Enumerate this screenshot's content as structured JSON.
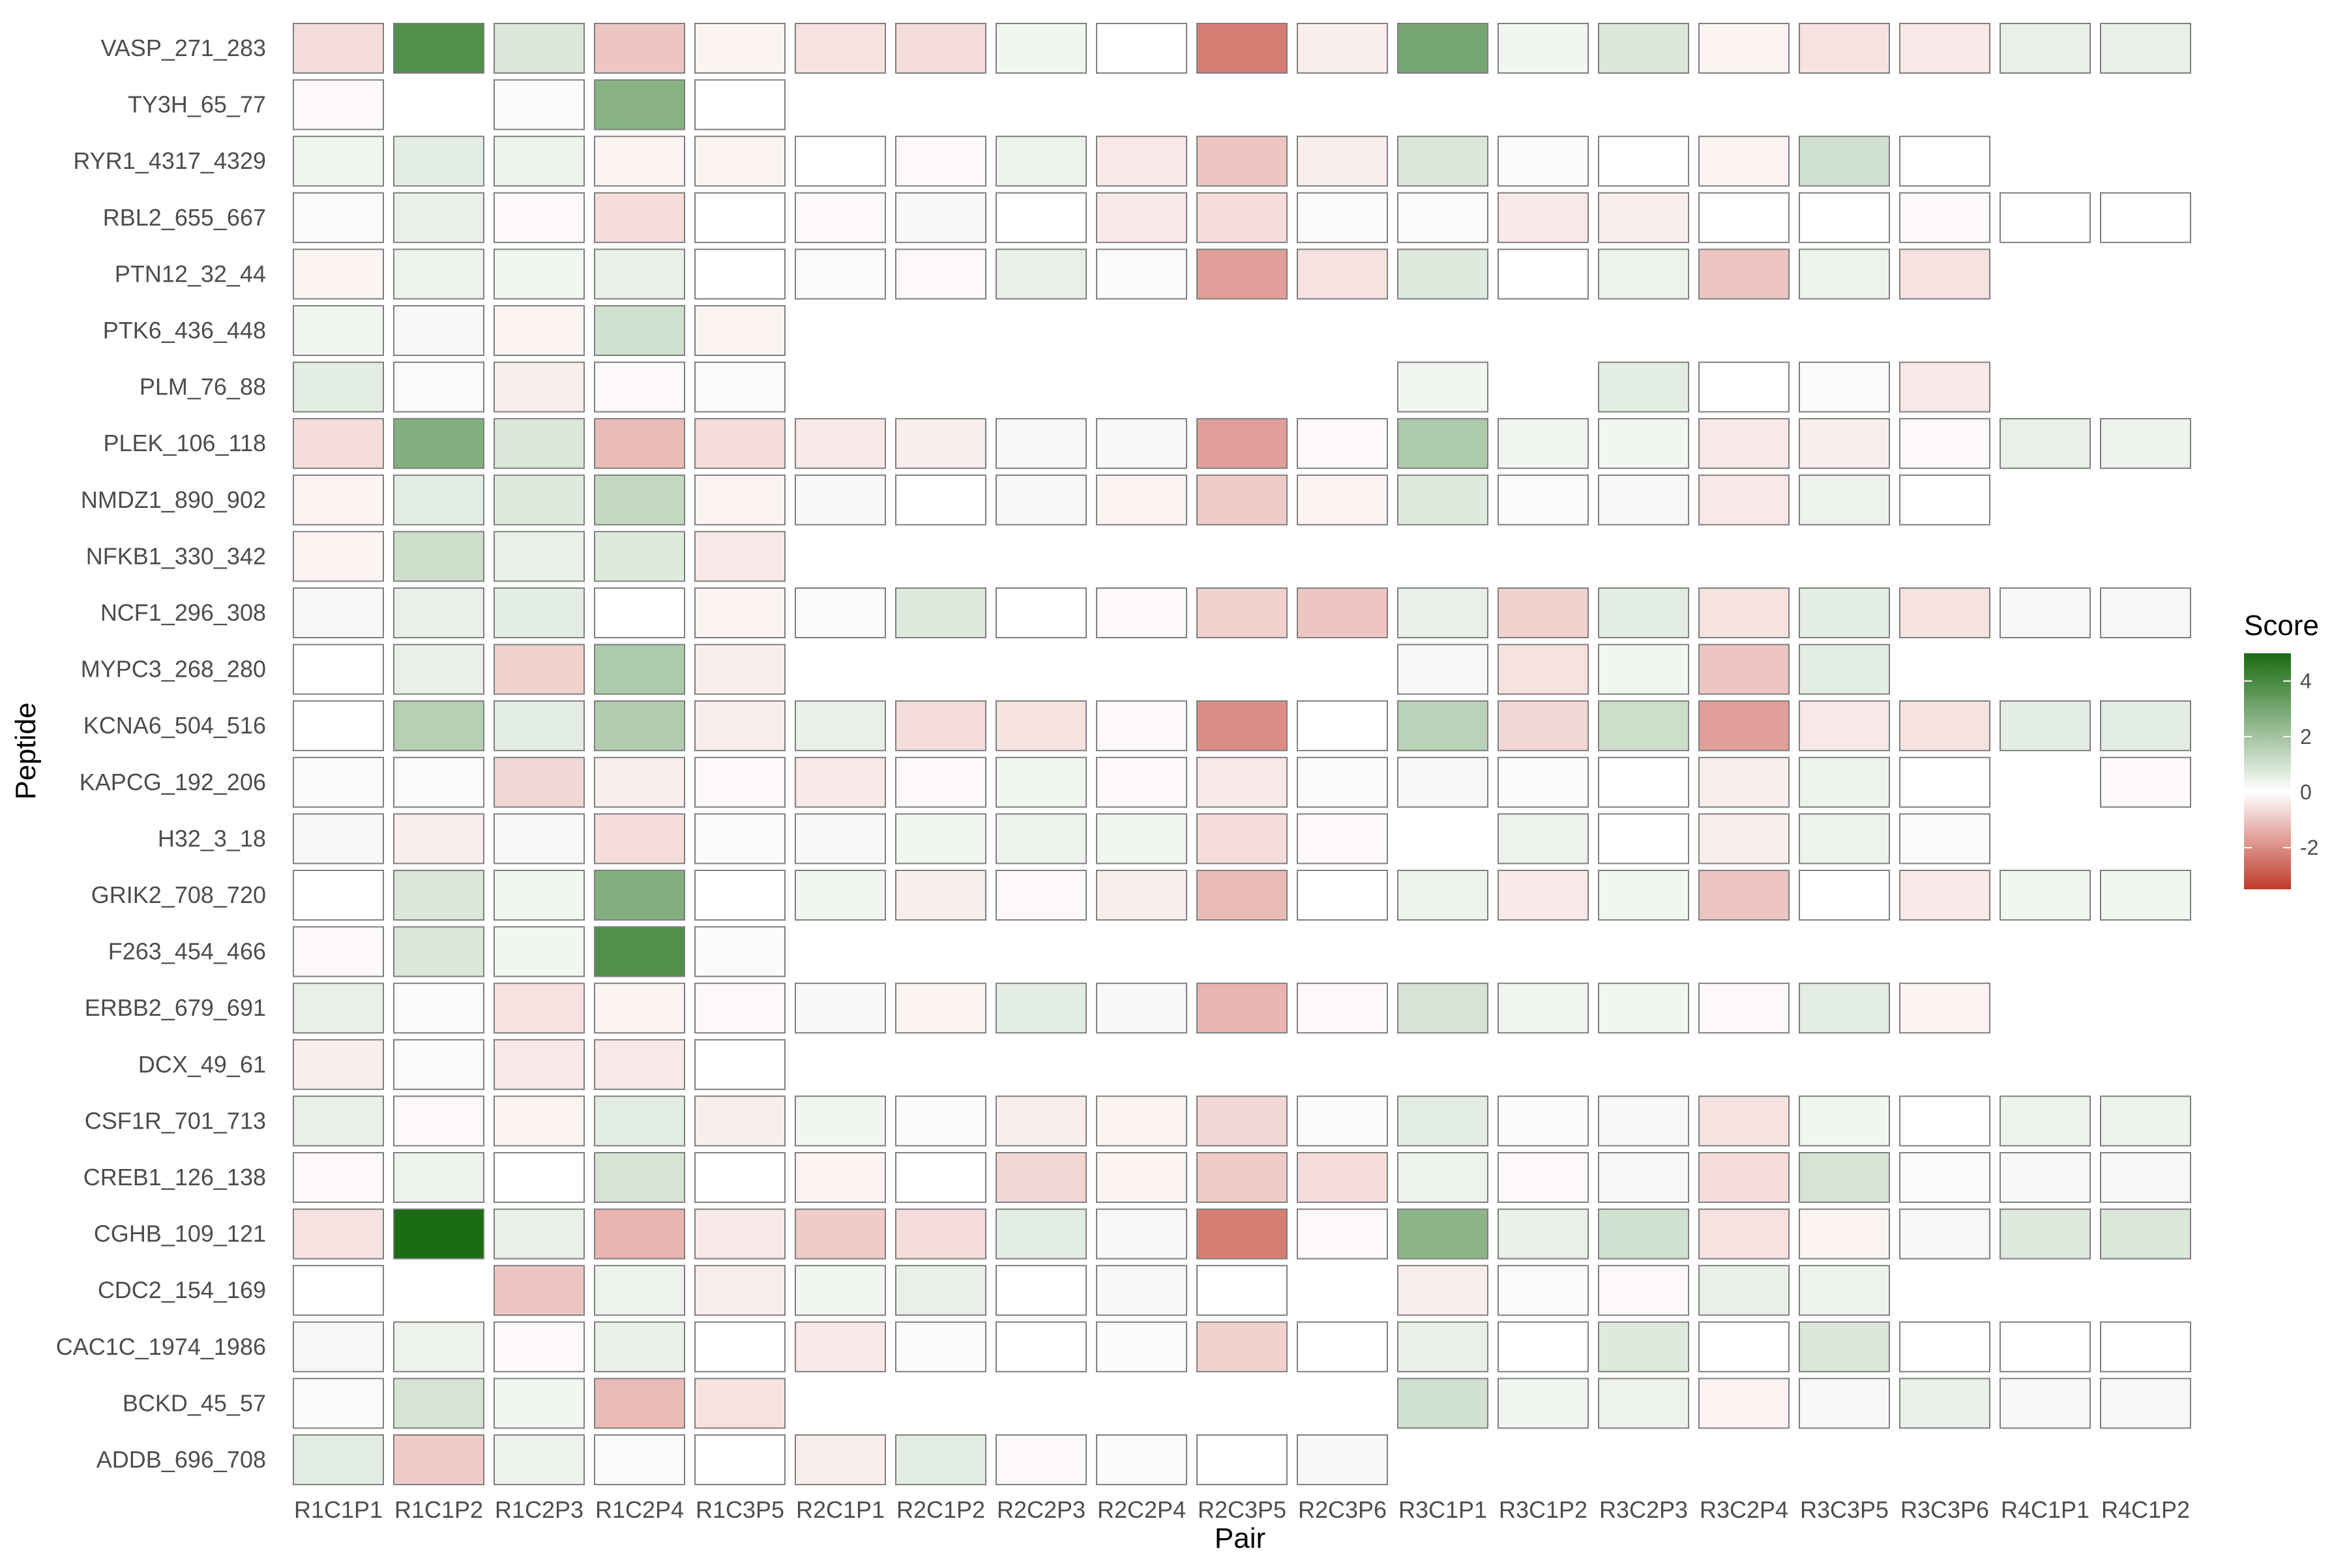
{
  "chart_data": {
    "type": "heatmap",
    "xlabel": "Pair",
    "ylabel": "Peptide",
    "legend": {
      "title": "Score",
      "placement": "right",
      "breaks": [
        4,
        2,
        0,
        -2
      ],
      "break_labels": [
        "4",
        "2",
        "0",
        "-2"
      ],
      "range": [
        -3.5,
        5
      ],
      "colors": {
        "low": "#c0392b",
        "mid": "#ffffff",
        "high": "#1a6b12"
      }
    },
    "x_categories": [
      "R1C1P1",
      "R1C1P2",
      "R1C2P3",
      "R1C2P4",
      "R1C3P5",
      "R2C1P1",
      "R2C1P2",
      "R2C2P3",
      "R2C2P4",
      "R2C3P5",
      "R2C3P6",
      "R3C1P1",
      "R3C1P2",
      "R3C2P3",
      "R3C2P4",
      "R3C3P5",
      "R3C3P6",
      "R4C1P1",
      "R4C1P2"
    ],
    "y_categories": [
      "VASP_271_283",
      "TY3H_65_77",
      "RYR1_4317_4329",
      "RBL2_655_667",
      "PTN12_32_44",
      "PTK6_436_448",
      "PLM_76_88",
      "PLEK_106_118",
      "NMDZ1_890_902",
      "NFKB1_330_342",
      "NCF1_296_308",
      "MYPC3_268_280",
      "KCNA6_504_516",
      "KAPCG_192_206",
      "H32_3_18",
      "GRIK2_708_720",
      "F263_454_466",
      "ERBB2_679_691",
      "DCX_49_61",
      "CSF1R_701_713",
      "CREB1_126_138",
      "CGHB_109_121",
      "CDC2_154_169",
      "CAC1C_1974_1986",
      "BCKD_45_57",
      "ADDB_696_708"
    ],
    "values": [
      [
        -0.6,
        3.8,
        0.8,
        -1.0,
        -0.2,
        -0.5,
        -0.6,
        0.3,
        0.0,
        -2.3,
        -0.3,
        3.0,
        0.3,
        0.8,
        -0.2,
        -0.5,
        -0.4,
        0.5,
        0.5
      ],
      [
        -0.1,
        null,
        0.1,
        2.6,
        0.0,
        null,
        null,
        null,
        null,
        null,
        null,
        null,
        null,
        null,
        null,
        null,
        null,
        null,
        null
      ],
      [
        0.3,
        0.6,
        0.4,
        -0.2,
        -0.2,
        0.0,
        -0.1,
        0.4,
        -0.4,
        -1.0,
        -0.3,
        0.8,
        0.1,
        0.0,
        -0.2,
        1.0,
        0.0,
        null,
        null
      ],
      [
        0.1,
        0.5,
        -0.1,
        -0.6,
        0.0,
        -0.1,
        0.2,
        0.0,
        -0.4,
        -0.6,
        0.1,
        0.1,
        -0.4,
        -0.3,
        0.0,
        0.0,
        -0.1,
        0.0,
        0.0
      ],
      [
        -0.2,
        0.4,
        0.3,
        0.5,
        0.0,
        0.1,
        -0.1,
        0.5,
        0.1,
        -1.7,
        -0.5,
        0.7,
        0.0,
        0.4,
        -1.0,
        0.4,
        -0.5,
        null,
        null
      ],
      [
        0.3,
        0.2,
        -0.2,
        1.0,
        -0.2,
        null,
        null,
        null,
        null,
        null,
        null,
        null,
        null,
        null,
        null,
        null,
        null,
        null,
        null
      ],
      [
        0.6,
        0.1,
        -0.3,
        -0.1,
        0.1,
        null,
        null,
        null,
        null,
        null,
        null,
        0.3,
        null,
        0.6,
        0.0,
        0.1,
        -0.4,
        null,
        null
      ],
      [
        -0.6,
        2.7,
        0.8,
        -1.2,
        -0.6,
        -0.4,
        -0.3,
        0.2,
        0.2,
        -1.7,
        -0.1,
        1.8,
        0.3,
        0.3,
        -0.4,
        -0.3,
        -0.1,
        0.5,
        0.4
      ],
      [
        -0.2,
        0.6,
        0.7,
        1.3,
        -0.2,
        0.2,
        0.0,
        0.2,
        -0.2,
        -0.9,
        -0.2,
        0.7,
        0.1,
        0.2,
        -0.4,
        0.4,
        0.0,
        null,
        null
      ],
      [
        -0.2,
        1.1,
        0.5,
        0.7,
        -0.4,
        null,
        null,
        null,
        null,
        null,
        null,
        null,
        null,
        null,
        null,
        null,
        null,
        null,
        null
      ],
      [
        0.2,
        0.5,
        0.6,
        0.0,
        -0.2,
        0.1,
        0.7,
        0.0,
        -0.1,
        -0.8,
        -1.0,
        0.5,
        -0.8,
        0.6,
        -0.5,
        0.6,
        -0.5,
        0.2,
        0.2
      ],
      [
        0.0,
        0.5,
        -0.8,
        1.8,
        -0.3,
        null,
        null,
        null,
        null,
        null,
        null,
        0.2,
        -0.5,
        0.3,
        -1.0,
        0.6,
        null,
        null,
        null
      ],
      [
        0.0,
        1.6,
        0.6,
        1.7,
        -0.3,
        0.5,
        -0.6,
        -0.5,
        -0.1,
        -2.0,
        0.0,
        1.5,
        -0.7,
        1.1,
        -1.7,
        -0.4,
        -0.5,
        0.6,
        0.6
      ],
      [
        0.1,
        0.1,
        -0.7,
        -0.3,
        -0.1,
        -0.4,
        -0.1,
        0.3,
        -0.1,
        -0.4,
        0.1,
        0.2,
        0.1,
        0.0,
        -0.3,
        0.4,
        0.0,
        null,
        -0.1
      ],
      [
        0.2,
        -0.3,
        0.2,
        -0.6,
        0.1,
        0.2,
        0.3,
        0.4,
        0.3,
        -0.6,
        -0.1,
        null,
        0.4,
        0.0,
        -0.3,
        0.4,
        0.1,
        null,
        null
      ],
      [
        0.0,
        0.8,
        0.3,
        2.7,
        0.0,
        0.3,
        -0.3,
        -0.1,
        -0.3,
        -1.2,
        0.0,
        0.4,
        -0.4,
        0.3,
        -1.0,
        0.0,
        -0.4,
        0.3,
        0.3
      ],
      [
        -0.1,
        0.8,
        0.3,
        3.8,
        0.1,
        null,
        null,
        null,
        null,
        null,
        null,
        null,
        null,
        null,
        null,
        null,
        null,
        null,
        null
      ],
      [
        0.5,
        0.1,
        -0.5,
        -0.2,
        -0.1,
        0.2,
        -0.2,
        0.6,
        0.2,
        -1.3,
        -0.1,
        0.9,
        0.3,
        0.3,
        -0.1,
        0.6,
        -0.2,
        null,
        null
      ],
      [
        -0.3,
        0.1,
        -0.4,
        -0.4,
        0.0,
        null,
        null,
        null,
        null,
        null,
        null,
        null,
        null,
        null,
        null,
        null,
        null,
        null,
        null
      ],
      [
        0.5,
        -0.1,
        -0.2,
        0.6,
        -0.3,
        0.3,
        0.1,
        -0.3,
        -0.2,
        -0.7,
        0.1,
        0.6,
        0.1,
        0.2,
        -0.5,
        0.3,
        0.0,
        0.4,
        0.4
      ],
      [
        -0.1,
        0.4,
        0.0,
        0.9,
        0.0,
        -0.2,
        0.0,
        -0.7,
        -0.2,
        -0.9,
        -0.6,
        0.4,
        -0.1,
        0.2,
        -0.6,
        0.9,
        0.1,
        0.2,
        0.2
      ],
      [
        -0.5,
        5.0,
        0.5,
        -1.3,
        -0.4,
        -0.9,
        -0.6,
        0.6,
        0.2,
        -2.3,
        -0.1,
        2.5,
        0.5,
        1.0,
        -0.5,
        -0.2,
        0.2,
        0.7,
        0.8
      ],
      [
        0.0,
        null,
        -1.0,
        0.4,
        -0.3,
        0.3,
        0.5,
        0.0,
        0.2,
        0.0,
        null,
        -0.3,
        0.1,
        -0.1,
        0.5,
        0.4,
        null,
        null,
        null
      ],
      [
        0.2,
        0.4,
        -0.1,
        0.5,
        0.0,
        -0.4,
        0.1,
        0.0,
        0.1,
        -0.8,
        0.0,
        0.5,
        0.0,
        0.7,
        0.0,
        0.8,
        0.0,
        0.0,
        0.0
      ],
      [
        0.1,
        0.9,
        0.3,
        -1.2,
        -0.5,
        null,
        null,
        null,
        null,
        null,
        null,
        1.0,
        0.3,
        0.4,
        -0.2,
        0.2,
        0.5,
        0.2,
        0.2
      ],
      [
        0.6,
        -0.9,
        0.4,
        0.1,
        0.0,
        -0.3,
        0.6,
        -0.1,
        0.1,
        0.0,
        0.2,
        null,
        null,
        null,
        null,
        null,
        null,
        null,
        null
      ]
    ]
  }
}
